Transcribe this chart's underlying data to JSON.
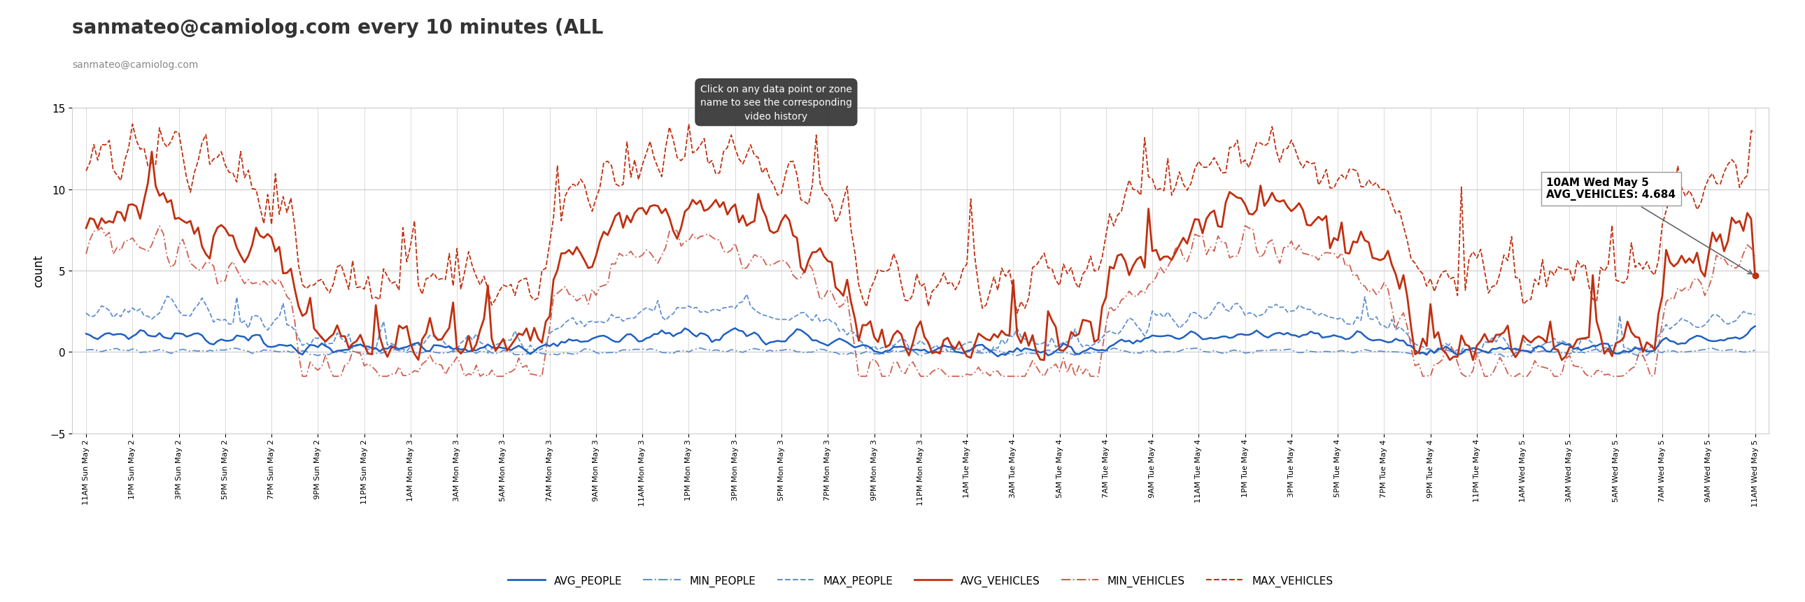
{
  "title": "sanmateo@camiolog.com every 10 minutes (ALL",
  "subtitle": "sanmateo@camiolog.com",
  "ylabel": "count",
  "ylim": [
    -5,
    15
  ],
  "yticks": [
    -5,
    0,
    5,
    10,
    15
  ],
  "annotation_text": "10AM Wed May 5\nAVG_VEHICLES: 4.684",
  "tooltip_text": "Click on any data point or zone\nname to see the corresponding\nvideo history",
  "blue_solid_color": "#2060c0",
  "blue_dashdot_color": "#6090d0",
  "blue_dashed_color": "#6090d0",
  "red_solid_color": "#c03010",
  "red_dashdot_color": "#d06050",
  "red_dashed_color": "#c03010",
  "background_color": "#ffffff",
  "grid_color": "#cccccc",
  "x_tick_labels": [
    "11AM Sun May 2",
    "1PM Sun May 2",
    "3PM Sun May 2",
    "5PM Sun May 2",
    "7PM Sun May 2",
    "9PM Sun May 2",
    "11PM Sun May 2",
    "1AM Mon May 3",
    "3AM Mon May 3",
    "5AM Mon May 3",
    "7AM Mon May 3",
    "9AM Mon May 3",
    "11AM Mon May 3",
    "1PM Mon May 3",
    "3PM Mon May 3",
    "5PM Mon May 3",
    "7PM Mon May 3",
    "9PM Mon May 3",
    "11PM Mon May 3",
    "1AM Tue May 4",
    "3AM Tue May 4",
    "5AM Tue May 4",
    "7AM Tue May 4",
    "9AM Tue May 4",
    "11AM Tue May 4",
    "1PM Tue May 4",
    "3PM Tue May 4",
    "5PM Tue May 4",
    "7PM Tue May 4",
    "9PM Tue May 4",
    "11PM Tue May 4",
    "1AM Wed May 5",
    "3AM Wed May 5",
    "5AM Wed May 5",
    "7AM Wed May 5",
    "9AM Wed May 5",
    "11AM Wed May 5"
  ]
}
